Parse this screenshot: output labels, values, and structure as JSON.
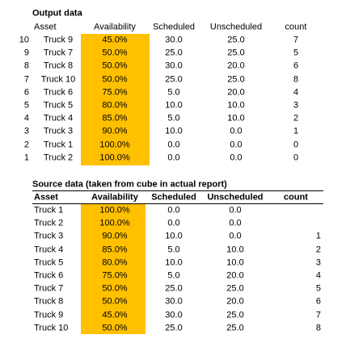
{
  "output": {
    "title": "Output data",
    "headers": [
      "Asset",
      "Availability",
      "Scheduled",
      "Unscheduled",
      "count"
    ],
    "rows": [
      [
        "10",
        "Truck 9",
        "45.0%",
        "30.0",
        "25.0",
        "7"
      ],
      [
        "9",
        "Truck 7",
        "50.0%",
        "25.0",
        "25.0",
        "5"
      ],
      [
        "8",
        "Truck 8",
        "50.0%",
        "30.0",
        "20.0",
        "6"
      ],
      [
        "7",
        "Truck 10",
        "50.0%",
        "25.0",
        "25.0",
        "8"
      ],
      [
        "6",
        "Truck 6",
        "75.0%",
        "5.0",
        "20.0",
        "4"
      ],
      [
        "5",
        "Truck 5",
        "80.0%",
        "10.0",
        "10.0",
        "3"
      ],
      [
        "4",
        "Truck 4",
        "85.0%",
        "5.0",
        "10.0",
        "2"
      ],
      [
        "3",
        "Truck 3",
        "90.0%",
        "10.0",
        "0.0",
        "1"
      ],
      [
        "2",
        "Truck 1",
        "100.0%",
        "0.0",
        "0.0",
        "0"
      ],
      [
        "1",
        "Truck 2",
        "100.0%",
        "0.0",
        "0.0",
        "0"
      ]
    ]
  },
  "source": {
    "title": "Source data (taken from cube in actual report)",
    "headers": [
      "Asset",
      "Availability",
      "Scheduled",
      "Unscheduled",
      "count"
    ],
    "rows": [
      [
        "Truck 1",
        "100.0%",
        "0.0",
        "0.0",
        null
      ],
      [
        "Truck 2",
        "100.0%",
        "0.0",
        "0.0",
        null
      ],
      [
        "Truck 3",
        "90.0%",
        "10.0",
        "0.0",
        "1"
      ],
      [
        "Truck 4",
        "85.0%",
        "5.0",
        "10.0",
        "2"
      ],
      [
        "Truck 5",
        "80.0%",
        "10.0",
        "10.0",
        "3"
      ],
      [
        "Truck 6",
        "75.0%",
        "5.0",
        "20.0",
        "4"
      ],
      [
        "Truck 7",
        "50.0%",
        "25.0",
        "25.0",
        "5"
      ],
      [
        "Truck 8",
        "50.0%",
        "30.0",
        "20.0",
        "6"
      ],
      [
        "Truck 9",
        "45.0%",
        "30.0",
        "25.0",
        "7"
      ],
      [
        "Truck 10",
        "50.0%",
        "25.0",
        "25.0",
        "8"
      ]
    ]
  }
}
